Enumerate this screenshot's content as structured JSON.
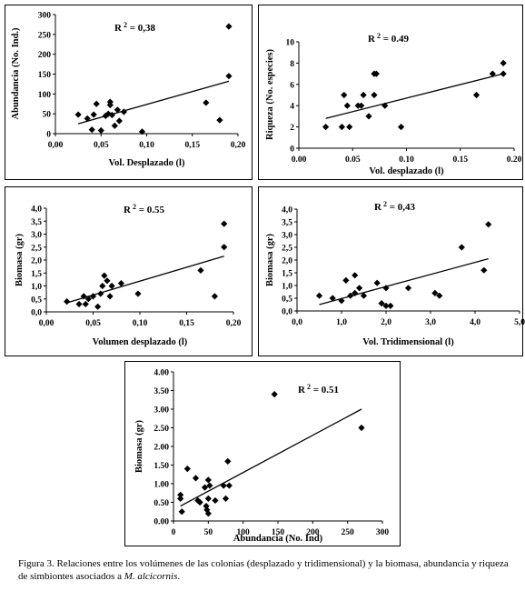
{
  "chart_data": [
    {
      "type": "scatter",
      "title": "",
      "annotation": "R 2 = 0,38",
      "xlabel": "Vol. Desplazado (l)",
      "ylabel": "Abundancia (No. Ind.)",
      "xlim": [
        0,
        0.2
      ],
      "ylim": [
        0,
        300
      ],
      "xticks": [
        "0,00",
        "0,05",
        "0,10",
        "0,15",
        "0,20"
      ],
      "yticks": [
        "0",
        "50",
        "100",
        "150",
        "200",
        "250",
        "300"
      ],
      "x": [
        0.025,
        0.035,
        0.04,
        0.042,
        0.045,
        0.05,
        0.055,
        0.058,
        0.06,
        0.06,
        0.062,
        0.065,
        0.068,
        0.07,
        0.075,
        0.095,
        0.165,
        0.18,
        0.19,
        0.19
      ],
      "y": [
        48,
        38,
        10,
        48,
        75,
        8,
        45,
        50,
        80,
        72,
        47,
        20,
        60,
        32,
        55,
        5,
        78,
        34,
        145,
        270
      ],
      "trendline": [
        [
          0.025,
          25
        ],
        [
          0.19,
          132
        ]
      ]
    },
    {
      "type": "scatter",
      "title": "",
      "annotation": "R 2 = 0.49",
      "xlabel": "Vol. desplazado (l)",
      "ylabel": "Riqueza (No. especies)",
      "xlim": [
        0,
        0.2
      ],
      "ylim": [
        0,
        10
      ],
      "xticks": [
        "0.00",
        "0.05",
        "0.10",
        "0.15",
        "0.20"
      ],
      "yticks": [
        "0",
        "2",
        "4",
        "6",
        "8",
        "10"
      ],
      "x": [
        0.025,
        0.04,
        0.042,
        0.045,
        0.047,
        0.055,
        0.058,
        0.06,
        0.065,
        0.07,
        0.07,
        0.072,
        0.08,
        0.095,
        0.165,
        0.18,
        0.19,
        0.19
      ],
      "y": [
        2,
        2,
        5,
        4,
        2,
        4,
        4,
        5,
        3,
        7,
        5,
        7,
        4,
        2,
        5,
        7,
        7,
        8
      ],
      "trendline": [
        [
          0.025,
          2.8
        ],
        [
          0.19,
          7
        ]
      ]
    },
    {
      "type": "scatter",
      "title": "",
      "annotation": "R 2 = 0.55",
      "xlabel": "Volumen desplazado (l)",
      "ylabel": "Biomasa (gr)",
      "xlim": [
        0,
        0.2
      ],
      "ylim": [
        0,
        4
      ],
      "xticks": [
        "0,00",
        "0,05",
        "0,10",
        "0,15",
        "0,20"
      ],
      "yticks": [
        "0,0",
        "0,5",
        "1,0",
        "1,5",
        "2,0",
        "2,5",
        "3,0",
        "3,5",
        "4,0"
      ],
      "x": [
        0.022,
        0.035,
        0.04,
        0.042,
        0.045,
        0.05,
        0.055,
        0.058,
        0.06,
        0.062,
        0.065,
        0.068,
        0.07,
        0.08,
        0.098,
        0.165,
        0.18,
        0.19,
        0.19
      ],
      "y": [
        0.4,
        0.3,
        0.6,
        0.3,
        0.5,
        0.6,
        0.2,
        0.7,
        1.0,
        1.4,
        1.2,
        0.6,
        1.0,
        1.1,
        0.7,
        1.6,
        0.6,
        2.5,
        3.4
      ],
      "trendline": [
        [
          0.022,
          0.35
        ],
        [
          0.19,
          2.15
        ]
      ]
    },
    {
      "type": "scatter",
      "title": "",
      "annotation": "R 2 = 0,43",
      "xlabel": "Vol. Tridimensional (l)",
      "ylabel": "Biomasa (gr)",
      "xlim": [
        0,
        5
      ],
      "ylim": [
        0,
        4
      ],
      "xticks": [
        "0,0",
        "1,0",
        "2,0",
        "3,0",
        "4,0",
        "5,0"
      ],
      "yticks": [
        "0,0",
        "0,5",
        "1,0",
        "1,5",
        "2,0",
        "2,5",
        "3,0",
        "3,5",
        "4,0"
      ],
      "x": [
        0.5,
        0.8,
        1.0,
        1.1,
        1.2,
        1.3,
        1.3,
        1.4,
        1.5,
        1.8,
        1.9,
        2.0,
        2.0,
        2.1,
        2.5,
        3.1,
        3.2,
        3.7,
        4.2,
        4.3
      ],
      "y": [
        0.6,
        0.5,
        0.4,
        1.2,
        0.6,
        1.4,
        0.7,
        0.9,
        0.6,
        1.1,
        0.3,
        0.2,
        0.9,
        0.2,
        0.9,
        0.7,
        0.6,
        2.5,
        1.6,
        3.4
      ],
      "trendline": [
        [
          0.5,
          0.25
        ],
        [
          4.3,
          2.05
        ]
      ]
    },
    {
      "type": "scatter",
      "title": "",
      "annotation": "R 2 = 0.51",
      "xlabel": "Abundancia (No. Ind)",
      "ylabel": "Biomasa (gr)",
      "xlim": [
        0,
        300
      ],
      "ylim": [
        0,
        4
      ],
      "xticks": [
        "0",
        "50",
        "100",
        "150",
        "200",
        "250",
        "300"
      ],
      "yticks": [
        "0.00",
        "0.50",
        "1.00",
        "1.50",
        "2.00",
        "2.50",
        "3.00",
        "3.50",
        "4.00"
      ],
      "x": [
        10,
        10,
        12,
        20,
        32,
        35,
        38,
        45,
        47,
        48,
        50,
        50,
        50,
        52,
        60,
        72,
        75,
        78,
        80,
        145,
        270
      ],
      "y": [
        0.7,
        0.6,
        0.25,
        1.4,
        1.15,
        0.55,
        0.5,
        0.9,
        0.4,
        0.3,
        0.2,
        0.6,
        1.1,
        0.95,
        0.55,
        0.95,
        0.6,
        1.6,
        0.95,
        3.4,
        2.5
      ],
      "trendline": [
        [
          10,
          0.4
        ],
        [
          270,
          3.0
        ]
      ]
    }
  ],
  "caption": {
    "text": "Figura 3. Relaciones entre los volúmenes de las colonias (desplazado y tridimensional) y la biomasa, abundancia y riqueza de simbiontes asociados a",
    "species": "M. alcicornis",
    "end": "."
  }
}
